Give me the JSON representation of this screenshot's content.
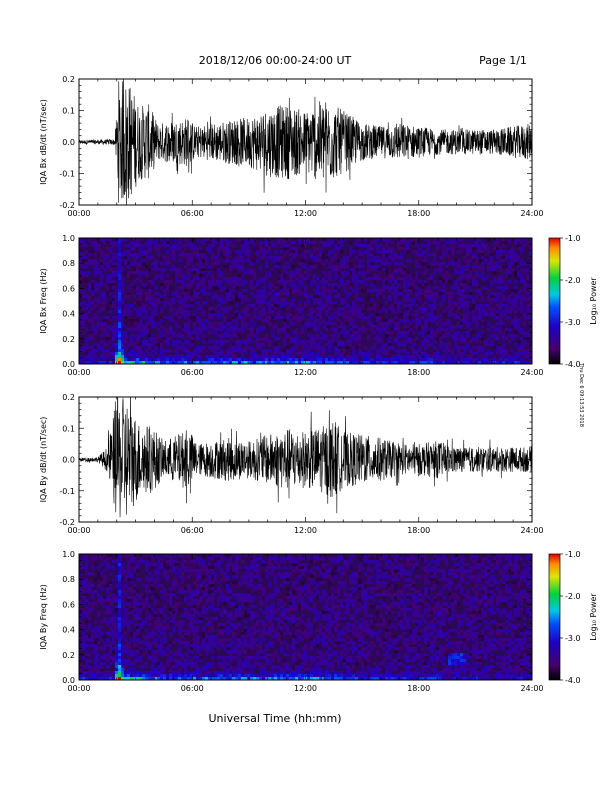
{
  "header": {
    "title": "2018/12/06  00:00-24:00 UT",
    "page": "Page 1/1"
  },
  "xlabel": "Universal Time (hh:mm)",
  "side_note": "Thu Dec 6 09:13:53 2018",
  "colors": {
    "trace": "#000000",
    "spectrogram_background": "#2a0a55"
  },
  "chart_data": [
    {
      "type": "line",
      "ylabel": "IQA Bx dB/dt (nT/sec)",
      "ylim": [
        -0.2,
        0.2
      ],
      "y_tick_labels": [
        "0.2",
        "0.1",
        "0.0",
        "-0.1",
        "-0.2"
      ],
      "x_tick_labels": [
        "00:00",
        "06:00",
        "12:00",
        "18:00",
        "24:00"
      ],
      "xlim_hours": [
        0,
        24
      ],
      "envelope": {
        "x": [
          0,
          1,
          1.9,
          2.1,
          2.6,
          3.2,
          3.7,
          4.2,
          5,
          5.8,
          6.2,
          7,
          8,
          9,
          10,
          11,
          12,
          12.5,
          13,
          14,
          15,
          16,
          17,
          18,
          19,
          20,
          21,
          22,
          23,
          24
        ],
        "amplitude": [
          0.006,
          0.007,
          0.01,
          0.2,
          0.2,
          0.12,
          0.12,
          0.06,
          0.07,
          0.08,
          0.05,
          0.06,
          0.07,
          0.08,
          0.11,
          0.12,
          0.1,
          0.12,
          0.14,
          0.1,
          0.06,
          0.05,
          0.06,
          0.05,
          0.04,
          0.04,
          0.04,
          0.04,
          0.05,
          0.06
        ]
      }
    },
    {
      "type": "heatmap",
      "ylabel": "IQA Bx Freq (Hz)",
      "ylim": [
        0.0,
        1.0
      ],
      "y_tick_labels": [
        "1.0",
        "0.8",
        "0.6",
        "0.4",
        "0.2",
        "0.0"
      ],
      "x_tick_labels": [
        "00:00",
        "06:00",
        "12:00",
        "18:00",
        "24:00"
      ],
      "colorbar": {
        "label": "Log₁₀ Power",
        "ticks": [
          "-1.0",
          "-2.0",
          "-3.0",
          "-4.0"
        ],
        "range": [
          -4.0,
          -1.0
        ]
      }
    },
    {
      "type": "line",
      "ylabel": "IQA By dB/dt (nT/sec)",
      "ylim": [
        -0.2,
        0.2
      ],
      "y_tick_labels": [
        "0.2",
        "0.1",
        "0.0",
        "-0.1",
        "-0.2"
      ],
      "x_tick_labels": [
        "00:00",
        "06:00",
        "12:00",
        "18:00",
        "24:00"
      ],
      "xlim_hours": [
        0,
        24
      ],
      "envelope": {
        "x": [
          0,
          1,
          1.5,
          2.0,
          2.5,
          3.2,
          3.8,
          4.5,
          5.2,
          5.8,
          6.3,
          7,
          8,
          9,
          10,
          11,
          12,
          13,
          13.5,
          14,
          15,
          16,
          17,
          18,
          19,
          20,
          21,
          22,
          23,
          24
        ],
        "amplitude": [
          0.006,
          0.008,
          0.04,
          0.2,
          0.2,
          0.12,
          0.11,
          0.06,
          0.08,
          0.1,
          0.05,
          0.06,
          0.07,
          0.06,
          0.08,
          0.1,
          0.09,
          0.11,
          0.13,
          0.09,
          0.08,
          0.07,
          0.05,
          0.05,
          0.06,
          0.04,
          0.04,
          0.04,
          0.04,
          0.04
        ]
      }
    },
    {
      "type": "heatmap",
      "ylabel": "IQA By Freq (Hz)",
      "ylim": [
        0.0,
        1.0
      ],
      "y_tick_labels": [
        "1.0",
        "0.8",
        "0.6",
        "0.4",
        "0.2",
        "0.0"
      ],
      "x_tick_labels": [
        "00:00",
        "06:00",
        "12:00",
        "18:00",
        "24:00"
      ],
      "colorbar": {
        "label": "Log₁₀ Power",
        "ticks": [
          "-1.0",
          "-2.0",
          "-3.0",
          "-4.0"
        ],
        "range": [
          -4.0,
          -1.0
        ]
      }
    }
  ]
}
